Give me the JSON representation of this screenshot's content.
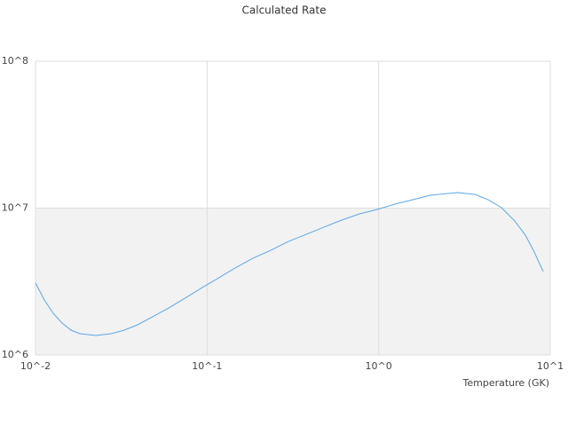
{
  "chart_data": {
    "type": "line",
    "title": "Calculated Rate",
    "x_label": "Temperature (GK)",
    "x_log": true,
    "y_log": true,
    "grid": true,
    "band_color": "#f2f2f2",
    "xlim": [
      0.01,
      10
    ],
    "ylim": [
      1000000,
      100000000
    ],
    "xticks": [
      {
        "value": 0.01,
        "label": "10^-2"
      },
      {
        "value": 0.1,
        "label": "10^-1"
      },
      {
        "value": 1,
        "label": "10^0"
      },
      {
        "value": 10,
        "label": "10^1"
      }
    ],
    "yticks": [
      {
        "value": 1000000,
        "label": "10^6"
      },
      {
        "value": 10000000,
        "label": "10^7"
      },
      {
        "value": 100000000,
        "label": "10^8"
      }
    ],
    "x": [
      0.01,
      0.01126,
      0.01269,
      0.01429,
      0.0161,
      0.01814,
      0.02248,
      0.02753,
      0.0329,
      0.03934,
      0.04703,
      0.05971,
      0.07573,
      0.09385,
      0.1149,
      0.1458,
      0.185,
      0.2349,
      0.2979,
      0.3781,
      0.4797,
      0.6087,
      0.7724,
      0.9804,
      1.244,
      1.579,
      2.003,
      2.542,
      2.864,
      3.633,
      4.344,
      5.195,
      6.212,
      7.165,
      8.07,
      9.09
    ],
    "series": [
      {
        "color": "#5aa7e6",
        "values": [
          3090000,
          2370000,
          1920000,
          1650000,
          1476000,
          1396000,
          1358000,
          1396000,
          1476000,
          1605000,
          1794000,
          2090000,
          2470000,
          2880000,
          3310000,
          3910000,
          4560000,
          5160000,
          5930000,
          6630000,
          7420000,
          8290000,
          9130000,
          9790000,
          10650000,
          11410000,
          12230000,
          12580000,
          12760000,
          12410000,
          11410000,
          10070000,
          8170000,
          6540000,
          5020000,
          3700000
        ]
      }
    ]
  }
}
